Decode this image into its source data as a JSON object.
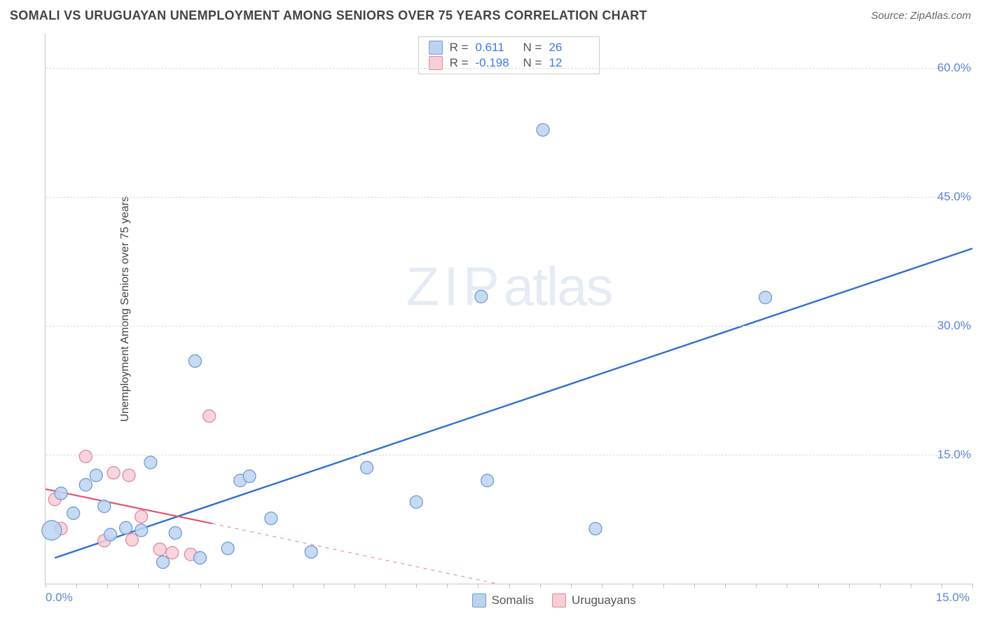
{
  "header": {
    "title": "SOMALI VS URUGUAYAN UNEMPLOYMENT AMONG SENIORS OVER 75 YEARS CORRELATION CHART",
    "source_prefix": "Source: ",
    "source": "ZipAtlas.com"
  },
  "chart": {
    "ylabel": "Unemployment Among Seniors over 75 years",
    "watermark_a": "ZIP",
    "watermark_b": "atlas",
    "xlim": [
      0,
      15
    ],
    "ylim": [
      0,
      64
    ],
    "yticks": [
      {
        "v": 15,
        "label": "15.0%"
      },
      {
        "v": 30,
        "label": "30.0%"
      },
      {
        "v": 45,
        "label": "45.0%"
      },
      {
        "v": 60,
        "label": "60.0%"
      }
    ],
    "xtick_left": "0.0%",
    "xtick_right": "15.0%",
    "grid_color": "#dcdcdc",
    "axis_color": "#c9c9c9",
    "background": "#ffffff",
    "xaxis_minor_ticks": 30,
    "series": [
      {
        "name": "Somalis",
        "fill": "#bcd3ef",
        "stroke": "#6f9bd8",
        "line_color": "#2f6fd0",
        "point_radius": 9,
        "R": "0.611",
        "N": "26",
        "trend": {
          "x1": 0.15,
          "y1": 3.0,
          "x2": 15.0,
          "y2": 39.0,
          "dashed": false
        },
        "points": [
          {
            "x": 0.1,
            "y": 6.2,
            "r": 14
          },
          {
            "x": 0.25,
            "y": 10.5
          },
          {
            "x": 0.45,
            "y": 8.2
          },
          {
            "x": 0.65,
            "y": 11.5
          },
          {
            "x": 0.82,
            "y": 12.6
          },
          {
            "x": 0.95,
            "y": 9.0
          },
          {
            "x": 1.05,
            "y": 5.7
          },
          {
            "x": 1.3,
            "y": 6.5
          },
          {
            "x": 1.55,
            "y": 6.2
          },
          {
            "x": 1.7,
            "y": 14.1
          },
          {
            "x": 1.9,
            "y": 2.5
          },
          {
            "x": 2.1,
            "y": 5.9
          },
          {
            "x": 2.42,
            "y": 25.9
          },
          {
            "x": 2.5,
            "y": 3.0
          },
          {
            "x": 2.95,
            "y": 4.1
          },
          {
            "x": 3.15,
            "y": 12.0
          },
          {
            "x": 3.3,
            "y": 12.5
          },
          {
            "x": 3.65,
            "y": 7.6
          },
          {
            "x": 4.3,
            "y": 3.7
          },
          {
            "x": 5.2,
            "y": 13.5
          },
          {
            "x": 6.0,
            "y": 9.5
          },
          {
            "x": 7.05,
            "y": 33.4
          },
          {
            "x": 7.15,
            "y": 12.0
          },
          {
            "x": 8.05,
            "y": 52.8
          },
          {
            "x": 8.9,
            "y": 6.4
          },
          {
            "x": 11.65,
            "y": 33.3
          }
        ]
      },
      {
        "name": "Uruguayans",
        "fill": "#f7cdd6",
        "stroke": "#e08aa0",
        "line_color": "#e05572",
        "point_radius": 9,
        "R": "-0.198",
        "N": "12",
        "trend_solid": {
          "x1": 0.0,
          "y1": 11.0,
          "x2": 2.7,
          "y2": 7.0
        },
        "trend_dashed": {
          "x1": 2.7,
          "y1": 7.0,
          "x2": 7.3,
          "y2": 0.0
        },
        "points": [
          {
            "x": 0.15,
            "y": 9.8
          },
          {
            "x": 0.25,
            "y": 6.4
          },
          {
            "x": 0.65,
            "y": 14.8
          },
          {
            "x": 0.95,
            "y": 5.0
          },
          {
            "x": 1.1,
            "y": 12.9
          },
          {
            "x": 1.35,
            "y": 12.6
          },
          {
            "x": 1.4,
            "y": 5.1
          },
          {
            "x": 1.55,
            "y": 7.8
          },
          {
            "x": 1.85,
            "y": 4.0
          },
          {
            "x": 2.05,
            "y": 3.6
          },
          {
            "x": 2.35,
            "y": 3.4
          },
          {
            "x": 2.65,
            "y": 19.5
          }
        ]
      }
    ]
  },
  "legend": {
    "items": [
      {
        "label": "Somalis",
        "fill": "#bcd3ef",
        "stroke": "#6f9bd8"
      },
      {
        "label": "Uruguayans",
        "fill": "#f7cdd6",
        "stroke": "#e08aa0"
      }
    ]
  }
}
